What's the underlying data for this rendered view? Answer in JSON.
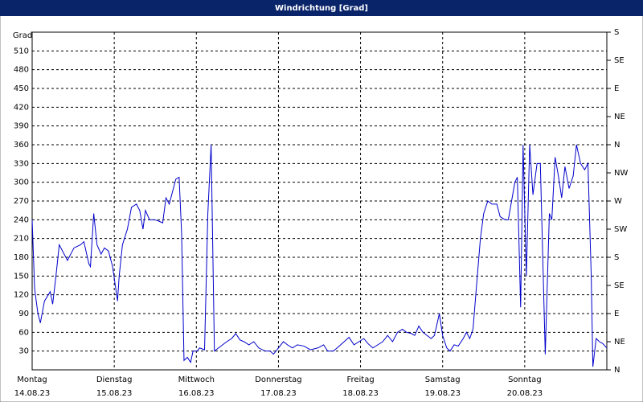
{
  "chart_data": {
    "type": "line",
    "title": "Windrichtung [Grad]",
    "ylabel": "Grad",
    "color": "#0000cc",
    "grid": true,
    "xlim": [
      0,
      7
    ],
    "xticks": [
      {
        "value": 0,
        "label": "Montag"
      },
      {
        "value": 1,
        "label": "Dienstag"
      },
      {
        "value": 2,
        "label": "Mittwoch"
      },
      {
        "value": 3,
        "label": "Donnerstag"
      },
      {
        "value": 4,
        "label": "Freitag"
      },
      {
        "value": 5,
        "label": "Samstag"
      },
      {
        "value": 6,
        "label": "Sonntag"
      }
    ],
    "xtick_dates": [
      "14.08.23",
      "15.08.23",
      "16.08.23",
      "17.08.23",
      "18.08.23",
      "19.08.23",
      "20.08.23"
    ],
    "ylim": [
      0,
      540
    ],
    "yticks": [
      30,
      60,
      90,
      120,
      150,
      180,
      210,
      240,
      270,
      300,
      330,
      360,
      390,
      420,
      450,
      480,
      510
    ],
    "y2lim": [
      0,
      540
    ],
    "y2ticks": [
      {
        "value": 0,
        "label": "N"
      },
      {
        "value": 45,
        "label": "NE"
      },
      {
        "value": 90,
        "label": "E"
      },
      {
        "value": 135,
        "label": "SE"
      },
      {
        "value": 180,
        "label": "S"
      },
      {
        "value": 225,
        "label": "SW"
      },
      {
        "value": 270,
        "label": "W"
      },
      {
        "value": 315,
        "label": "NW"
      },
      {
        "value": 360,
        "label": "N"
      },
      {
        "value": 405,
        "label": "NE"
      },
      {
        "value": 450,
        "label": "E"
      },
      {
        "value": 495,
        "label": "SE"
      },
      {
        "value": 540,
        "label": "S"
      }
    ],
    "x": [
      0,
      0.03,
      0.07,
      0.1,
      0.15,
      0.22,
      0.25,
      0.29,
      0.33,
      0.37,
      0.43,
      0.47,
      0.51,
      0.59,
      0.63,
      0.69,
      0.71,
      0.75,
      0.79,
      0.84,
      0.88,
      0.93,
      0.98,
      1.04,
      1.06,
      1.1,
      1.16,
      1.21,
      1.27,
      1.31,
      1.35,
      1.38,
      1.43,
      1.49,
      1.54,
      1.59,
      1.63,
      1.67,
      1.7,
      1.75,
      1.79,
      1.82,
      1.85,
      1.89,
      1.93,
      1.96,
      2.01,
      2.04,
      2.1,
      2.14,
      2.18,
      2.22,
      2.27,
      2.32,
      2.37,
      2.43,
      2.48,
      2.53,
      2.58,
      2.64,
      2.7,
      2.76,
      2.84,
      2.9,
      2.94,
      3.0,
      3.06,
      3.11,
      3.17,
      3.23,
      3.31,
      3.39,
      3.48,
      3.55,
      3.6,
      3.67,
      3.74,
      3.8,
      3.86,
      3.92,
      3.98,
      4.04,
      4.09,
      4.15,
      4.21,
      4.27,
      4.33,
      4.39,
      4.45,
      4.51,
      4.56,
      4.62,
      4.66,
      4.71,
      4.76,
      4.81,
      4.86,
      4.9,
      4.96,
      5.0,
      5.05,
      5.09,
      5.14,
      5.19,
      5.25,
      5.29,
      5.33,
      5.37,
      5.41,
      5.46,
      5.5,
      5.55,
      5.6,
      5.66,
      5.7,
      5.76,
      5.8,
      5.84,
      5.88,
      5.91,
      5.95,
      5.98,
      6.02,
      6.06,
      6.1,
      6.15,
      6.19,
      6.25,
      6.3,
      6.33,
      6.37,
      6.41,
      6.45,
      6.49,
      6.54,
      6.59,
      6.63,
      6.68,
      6.73,
      6.77,
      6.81,
      6.83,
      6.87,
      6.91,
      6.95,
      7.0
    ],
    "values": [
      240,
      130,
      90,
      75,
      110,
      125,
      105,
      150,
      200,
      190,
      175,
      185,
      195,
      200,
      205,
      170,
      165,
      250,
      200,
      185,
      195,
      190,
      165,
      110,
      150,
      200,
      225,
      260,
      265,
      255,
      225,
      255,
      240,
      240,
      238,
      235,
      275,
      265,
      280,
      305,
      308,
      220,
      15,
      20,
      12,
      30,
      30,
      35,
      32,
      250,
      360,
      30,
      35,
      40,
      45,
      50,
      58,
      48,
      45,
      40,
      45,
      35,
      30,
      30,
      25,
      35,
      45,
      40,
      35,
      40,
      38,
      32,
      35,
      40,
      30,
      30,
      38,
      45,
      52,
      40,
      45,
      50,
      42,
      35,
      40,
      45,
      55,
      45,
      60,
      65,
      60,
      58,
      55,
      70,
      60,
      55,
      50,
      55,
      90,
      55,
      35,
      30,
      40,
      38,
      50,
      60,
      50,
      65,
      130,
      210,
      250,
      270,
      265,
      265,
      245,
      240,
      240,
      270,
      300,
      308,
      100,
      360,
      150,
      360,
      280,
      330,
      330,
      25,
      250,
      240,
      340,
      310,
      275,
      325,
      290,
      310,
      360,
      330,
      320,
      330,
      150,
      5,
      50,
      45,
      42,
      35
    ]
  }
}
